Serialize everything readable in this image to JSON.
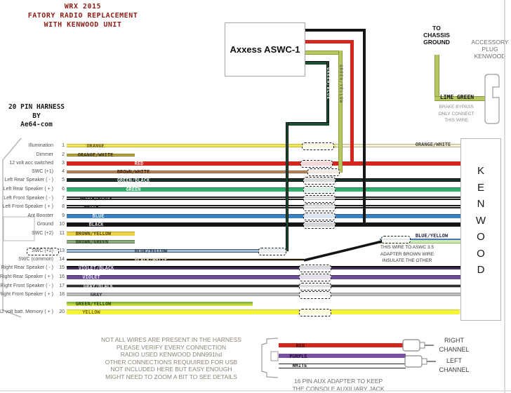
{
  "title": {
    "lines": [
      "WRX 2015",
      "FATORY RADIO REPLACEMENT",
      "WITH KENWOOD UNIT"
    ],
    "color": "#8e1d15"
  },
  "harness_credit": {
    "lines": [
      "20 PIN HARNESS",
      "BY",
      "Ae64-com"
    ]
  },
  "aswc": {
    "box_label": "Axxess ASWC-1",
    "dark_green_wire_label": "GREEN/BLUE",
    "lime_wire_label": "GREEN/YELLOW"
  },
  "chassis_ground": {
    "lines": [
      "TO",
      "CHASSIS",
      "GROUND"
    ]
  },
  "accessory_plug": {
    "lines": [
      "ACCESSORY",
      "PLUG",
      "KENWOOD"
    ],
    "wire_label": "LIME GREEN",
    "note_lines": [
      "BRAKE BYPASS",
      "ONLY CONNECT",
      "THIS WIRE"
    ]
  },
  "kenwood": {
    "letters": [
      "K",
      "E",
      "N",
      "W",
      "O",
      "O",
      "D"
    ]
  },
  "pins": [
    {
      "num": "1",
      "label": "Illumination",
      "wire_label": "ORANGE",
      "right_label": "ORANGE/WHITE"
    },
    {
      "num": "2",
      "label": "Dimmer",
      "wire_label": "ORANGE/WHITE"
    },
    {
      "num": "3",
      "label": "12 volt acc switched",
      "wire_label": "RED"
    },
    {
      "num": "4",
      "label": "SWC (+1)",
      "wire_label": "BROWN/WHITE"
    },
    {
      "num": "5",
      "label": "Left Rear Speaker ( - )",
      "wire_label": "GREEN/BLACK"
    },
    {
      "num": "6",
      "label": "Left Rear Speaker ( + )",
      "wire_label": "GREEN"
    },
    {
      "num": "7",
      "label": "Left Front Speaker ( - )",
      "wire_label": "WHITE/BLACK"
    },
    {
      "num": "8",
      "label": "Left Front Speaker ( + )",
      "wire_label": "WHITE"
    },
    {
      "num": "9",
      "label": "Ant Booster",
      "wire_label": "BLUE"
    },
    {
      "num": "10",
      "label": "Ground",
      "wire_label": "BLACK"
    },
    {
      "num": "11",
      "label": "SWC (+2)",
      "wire_label": "BROWN/YELLOW"
    },
    {
      "num": "",
      "label": "",
      "wire_label": "BROWN/GREEN"
    },
    {
      "num": "13",
      "label": "SWC (+2)",
      "wire_label": "BLUE/YELLOW"
    },
    {
      "num": "14",
      "label": "SWC (common)",
      "wire_label": "BLACK/WHITE"
    },
    {
      "num": "15",
      "label": "Right Rear Speaker ( - )",
      "wire_label": "VIOLET/BLACK"
    },
    {
      "num": "16",
      "label": "Right Rear Speaker ( + )",
      "wire_label": "VIOLET"
    },
    {
      "num": "17",
      "label": "Right Front Speaker ( - )",
      "wire_label": "GRAY/BLACK"
    },
    {
      "num": "18",
      "label": "Right Front Speaker ( + )",
      "wire_label": "GRAY"
    },
    {
      "num": "",
      "label": "",
      "wire_label": "GREEN/YELLOW"
    },
    {
      "num": "20",
      "label": "12 volt batt. Memory ( + )",
      "wire_label": "YELLOW"
    }
  ],
  "swc_adapter_note": {
    "wire_label": "BLUE/YELLOW",
    "lines": [
      "THIS WIRE TO ASWC 3.5",
      "ADAPTER BROWN WIRE",
      "INSULATE THE OTHER"
    ]
  },
  "bottom_notes": {
    "lines": [
      "NOT ALL WIRES ARE PRESENT IN THE HARNESS",
      "PLEASE VERIFY EVERY CONNECTION",
      "RADIO USED KENWOOD DNN991hd",
      "OTHER CONNECTIONS REQUUIRED FOR  USB",
      "NOT INCLUDED HERE BUT EASY ENOUGH",
      "MIGHT NEED TO ZOOM A BIT TO SEE DETAILS"
    ]
  },
  "aux_adapter": {
    "note_lines": [
      "16 PIN AUX ADAPTER TO KEEP",
      "THE CONSOLE AUXILIARY JACK"
    ],
    "wires": [
      {
        "label": "RED"
      },
      {
        "label": "PURPLE"
      },
      {
        "label": "WHITE"
      }
    ],
    "right_channel_lines": [
      "RIGHT",
      "CHANNEL"
    ],
    "left_channel_lines": [
      "LEFT",
      "CHANNEL"
    ]
  },
  "colors": {
    "title_red": "#8e1d15",
    "red_wire": "#d3261f",
    "yellow_wire": "#f0e65e",
    "green_wire": "#2fae6e",
    "blue_wire": "#3b82c4",
    "violet_wire": "#6a4d92",
    "lime_green": "#b9c763",
    "black_wire": "#161616"
  }
}
